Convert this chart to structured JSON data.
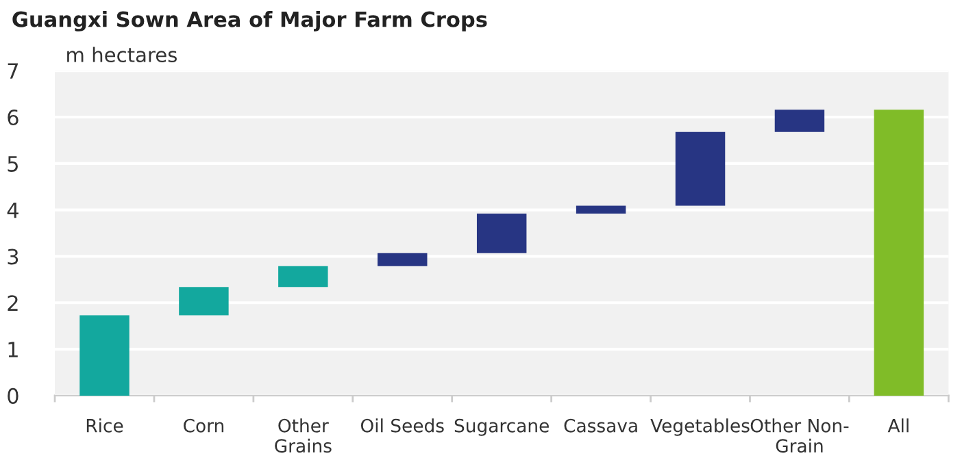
{
  "chart_data": {
    "type": "bar",
    "title": "Guangxi Sown Area of Major Farm Crops",
    "ylabel": "m hectares",
    "categories": [
      "Rice",
      "Corn",
      "Other\nGrains",
      "Oil Seeds",
      "Sugarcane",
      "Cassava",
      "Vegetables",
      "Other Non-\nGrain",
      "All"
    ],
    "values": [
      1.73,
      0.61,
      0.45,
      0.28,
      0.85,
      0.17,
      1.59,
      0.48,
      6.16
    ],
    "base": [
      0,
      1.73,
      2.34,
      2.79,
      3.07,
      3.92,
      4.09,
      5.68,
      0
    ],
    "colors": [
      "#13a89e",
      "#13a89e",
      "#13a89e",
      "#273583",
      "#273583",
      "#273583",
      "#273583",
      "#273583",
      "#80bc28"
    ],
    "ylim": [
      0,
      7
    ],
    "yticks": [
      0,
      1,
      2,
      3,
      4,
      5,
      6,
      7
    ],
    "grid": "y"
  }
}
